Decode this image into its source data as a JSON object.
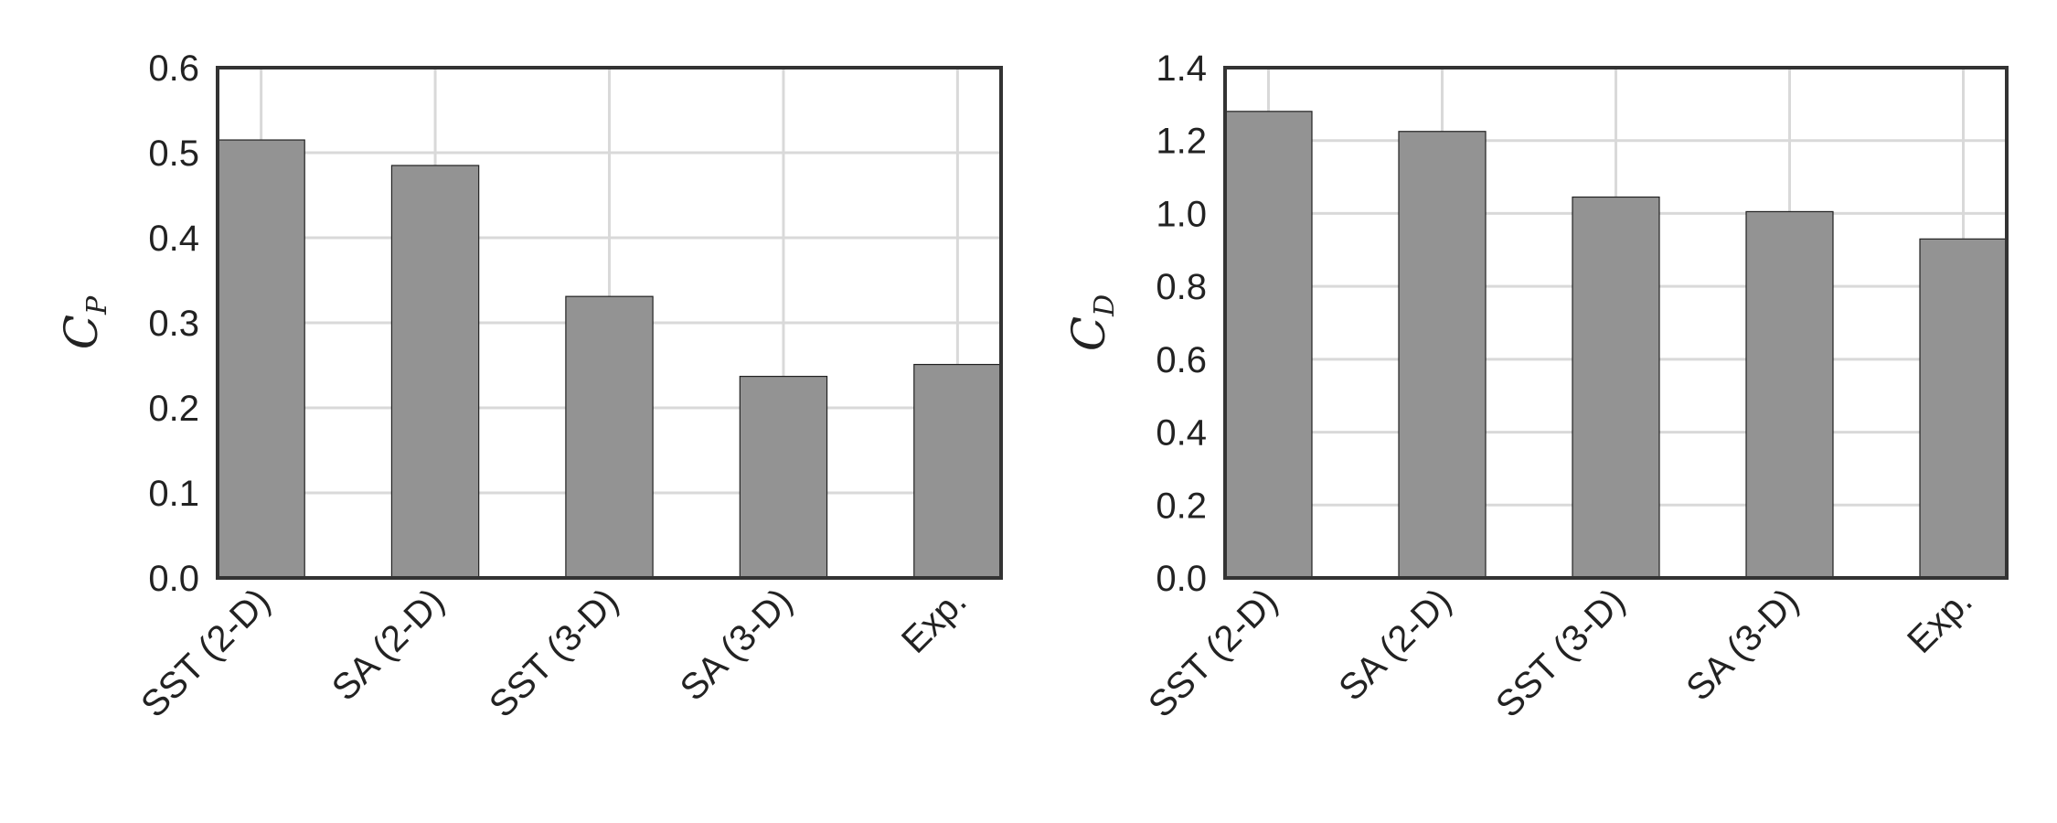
{
  "chart_data": [
    {
      "type": "bar",
      "categories": [
        "SST (2-D)",
        "SA (2-D)",
        "SST (3-D)",
        "SA (3-D)",
        "Exp."
      ],
      "values": [
        0.515,
        0.485,
        0.331,
        0.237,
        0.251
      ],
      "ylabel": "C",
      "ylabel_sub": "P",
      "ylim": [
        0,
        0.6
      ],
      "yticks": [
        "0.0",
        "0.1",
        "0.2",
        "0.3",
        "0.4",
        "0.5",
        "0.6"
      ],
      "grid": true,
      "bar_color": "#939393"
    },
    {
      "type": "bar",
      "categories": [
        "SST (2-D)",
        "SA (2-D)",
        "SST (3-D)",
        "SA (3-D)",
        "Exp."
      ],
      "values": [
        1.28,
        1.225,
        1.045,
        1.005,
        0.93
      ],
      "ylabel": "C",
      "ylabel_sub": "D",
      "ylim": [
        0,
        1.4
      ],
      "yticks": [
        "0.0",
        "0.2",
        "0.4",
        "0.6",
        "0.8",
        "1.0",
        "1.2",
        "1.4"
      ],
      "grid": true,
      "bar_color": "#939393"
    }
  ]
}
